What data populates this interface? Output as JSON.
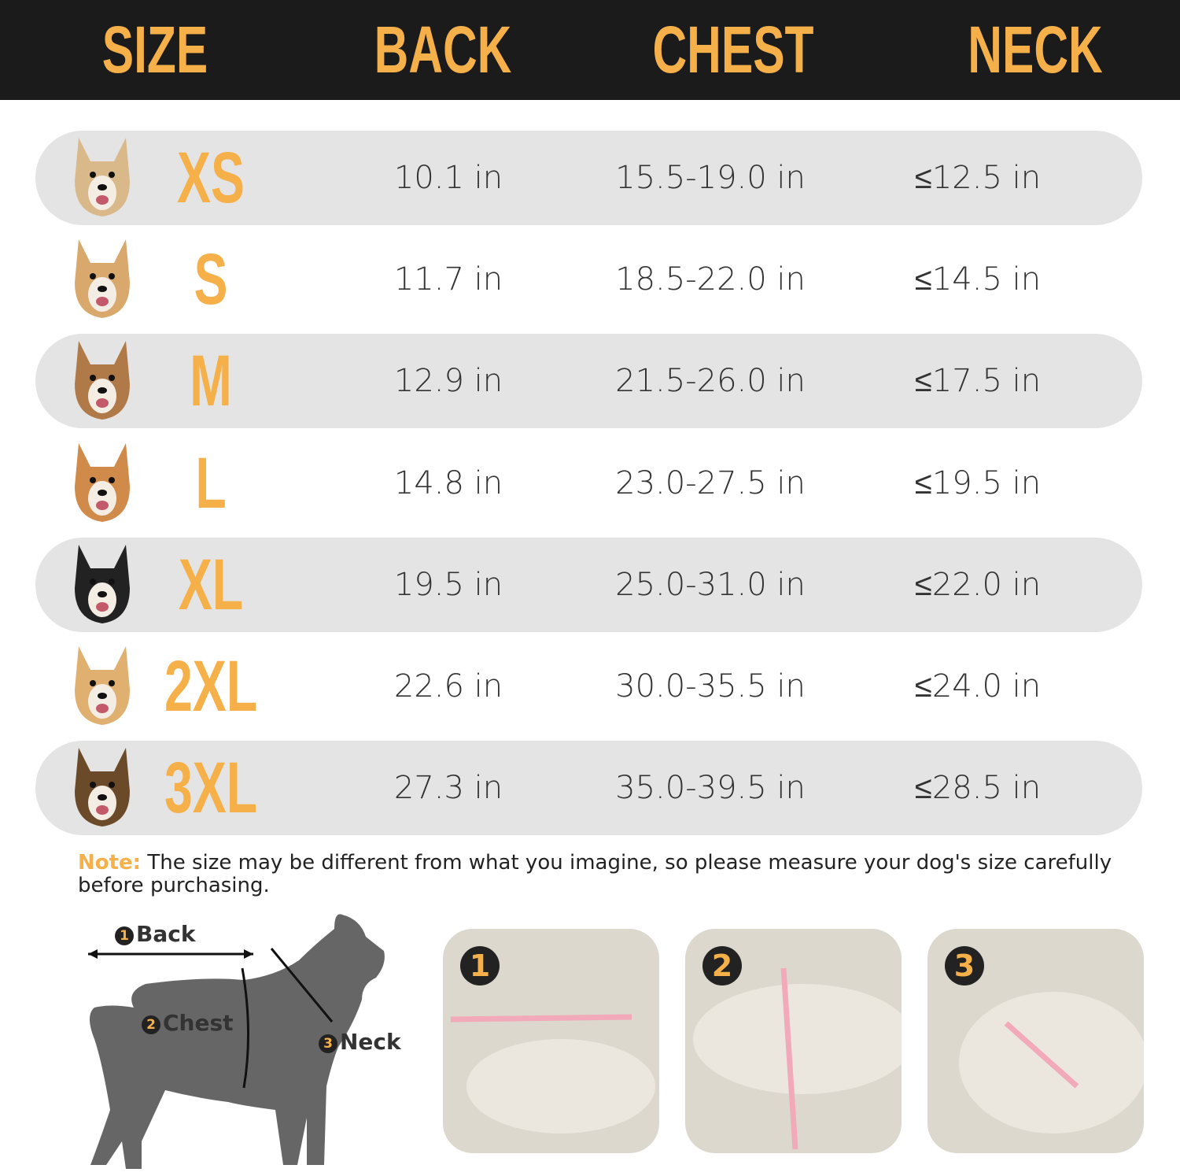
{
  "header": {
    "columns": [
      "SIZE",
      "BACK",
      "CHEST",
      "NECK"
    ]
  },
  "colors": {
    "accent": "#f5b04a",
    "header_bg": "#1b1b1b",
    "row_shade": "#e4e4e4"
  },
  "rows": [
    {
      "size": "XS",
      "back": "10.1 in",
      "chest": "15.5-19.0 in",
      "neck": "≤12.5 in",
      "dog": "chihuahua"
    },
    {
      "size": "S",
      "back": "11.7 in",
      "chest": "18.5-22.0 in",
      "neck": "≤14.5 in",
      "dog": "poodle-mix"
    },
    {
      "size": "M",
      "back": "12.9 in",
      "chest": "21.5-26.0 in",
      "neck": "≤17.5 in",
      "dog": "toy-poodle"
    },
    {
      "size": "L",
      "back": "14.8 in",
      "chest": "23.0-27.5 in",
      "neck": "≤19.5 in",
      "dog": "corgi"
    },
    {
      "size": "XL",
      "back": "19.5 in",
      "chest": "25.0-31.0 in",
      "neck": "≤22.0 in",
      "dog": "border-collie"
    },
    {
      "size": "2XL",
      "back": "22.6 in",
      "chest": "30.0-35.5 in",
      "neck": "≤24.0 in",
      "dog": "golden-retriever"
    },
    {
      "size": "3XL",
      "back": "27.3 in",
      "chest": "35.0-39.5 in",
      "neck": "≤28.5 in",
      "dog": "german-shepherd"
    }
  ],
  "note": {
    "label": "Note:",
    "text": " The size may be different from what you imagine, so please measure your dog's size carefully before purchasing."
  },
  "diagram": {
    "back": {
      "num": "1",
      "label": "Back"
    },
    "chest": {
      "num": "2",
      "label": "Chest"
    },
    "neck": {
      "num": "3",
      "label": "Neck"
    }
  },
  "panels": [
    "1",
    "2",
    "3"
  ]
}
